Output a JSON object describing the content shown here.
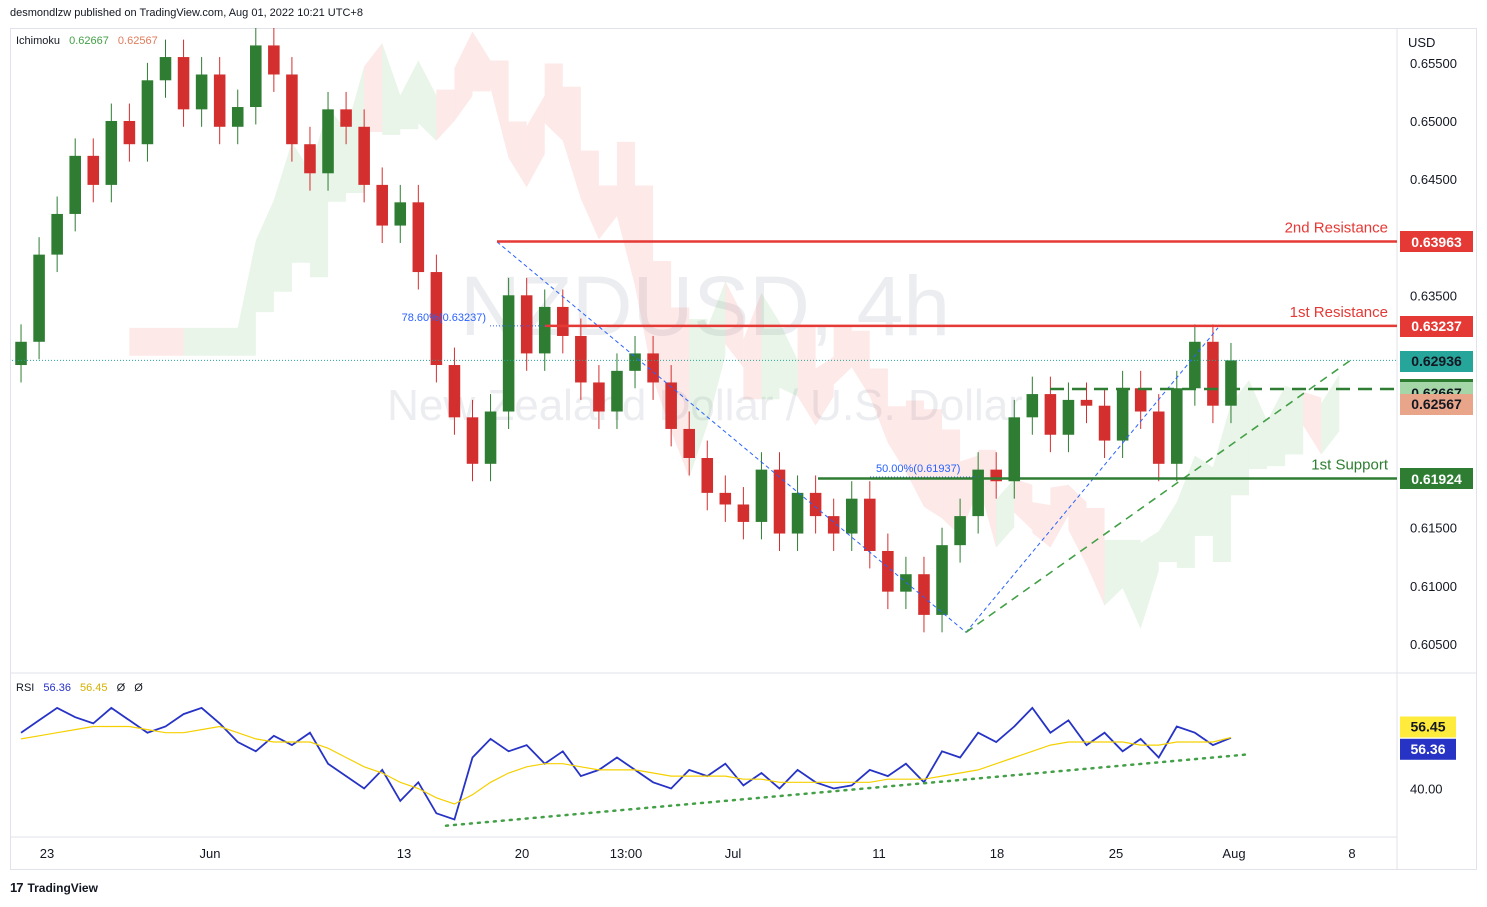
{
  "header": {
    "published": "desmondlzw published on TradingView.com, Aug 01, 2022 10:21 UTC+8"
  },
  "watermark": {
    "symbol": "NZDUSD, 4h",
    "name": "New Zealand Dollar / U.S. Dollar"
  },
  "indicators": {
    "ichimoku": {
      "label": "Ichimoku",
      "v1": "0.62667",
      "v2": "0.62567"
    },
    "rsi": {
      "label": "RSI",
      "v1": "56.36",
      "v2": "56.45",
      "v3": "Ø",
      "v4": "Ø"
    }
  },
  "footer": {
    "brand": "TradingView"
  },
  "colors": {
    "up": "#26a69a",
    "down": "#ef5350",
    "candle_up": "#2e7d32",
    "candle_down": "#d32f2f",
    "resistance": "#e53935",
    "support": "#2e7d32",
    "fib": "#2962ff",
    "rsi": "#2633c5",
    "rsi_ma": "#f5d000"
  },
  "chart_data": [
    {
      "type": "candlestick",
      "title": "NZDUSD, 4h",
      "ylabel": "USD",
      "ylim": [
        0.6025,
        0.658
      ],
      "yticks": [
        "0.65500",
        "0.65000",
        "0.64500",
        "0.63500",
        "0.61500",
        "0.61000",
        "0.60500"
      ],
      "xticks": [
        "23",
        "Jun",
        "13",
        "20",
        "13:00",
        "Jul",
        "11",
        "18",
        "25",
        "Aug",
        "8"
      ],
      "annotations": {
        "levels": [
          {
            "label": "2nd Resistance",
            "value": 0.63963,
            "tag": "0.63963",
            "color": "#e53935",
            "style": "solid"
          },
          {
            "label": "1st Resistance",
            "value": 0.63237,
            "tag": "0.63237",
            "color": "#e53935",
            "style": "solid"
          },
          {
            "label": "",
            "value": 0.62694,
            "tag": "0.62694",
            "color": "#2e7d32",
            "style": "dashed"
          },
          {
            "label": "1st Support",
            "value": 0.61924,
            "tag": "0.61924",
            "color": "#2e7d32",
            "style": "solid"
          }
        ],
        "fib": [
          {
            "text": "78.60%(0.63237)",
            "value": 0.63237
          },
          {
            "text": "50.00%(0.61937)",
            "value": 0.61937
          }
        ],
        "tags": [
          {
            "text": "0.62936",
            "value": 0.62936,
            "color": "#26a69a"
          },
          {
            "text": "0.62667",
            "value": 0.62667,
            "color": "#a5d6a7"
          },
          {
            "text": "0.62567",
            "value": 0.62567,
            "color": "#e8a58a"
          }
        ]
      },
      "series": [
        {
          "name": "Close",
          "values": [
            0.631,
            0.6385,
            0.642,
            0.647,
            0.6445,
            0.65,
            0.648,
            0.6535,
            0.6555,
            0.651,
            0.654,
            0.6495,
            0.6512,
            0.6565,
            0.654,
            0.648,
            0.6455,
            0.651,
            0.6495,
            0.6445,
            0.641,
            0.643,
            0.637,
            0.629,
            0.6245,
            0.6205,
            0.625,
            0.635,
            0.63,
            0.634,
            0.6315,
            0.6275,
            0.625,
            0.6285,
            0.63,
            0.6275,
            0.6235,
            0.621,
            0.618,
            0.617,
            0.6155,
            0.62,
            0.6145,
            0.618,
            0.616,
            0.6145,
            0.6175,
            0.613,
            0.6095,
            0.611,
            0.6075,
            0.6135,
            0.616,
            0.62,
            0.619,
            0.6245,
            0.6265,
            0.623,
            0.626,
            0.6255,
            0.6225,
            0.627,
            0.625,
            0.6205,
            0.627,
            0.631,
            0.6255,
            0.6294
          ]
        }
      ]
    },
    {
      "type": "line",
      "title": "RSI",
      "ylim": [
        25,
        75
      ],
      "yticks": [
        "40.00"
      ],
      "series": [
        {
          "name": "RSI",
          "tag": "56.36",
          "values": [
            58,
            62,
            66,
            63,
            61,
            66,
            62,
            58,
            60,
            64,
            66,
            61,
            55,
            52,
            57,
            54,
            58,
            48,
            44,
            40,
            46,
            36,
            42,
            32,
            30,
            50,
            56,
            52,
            54,
            48,
            52,
            44,
            46,
            50,
            46,
            42,
            40,
            46,
            44,
            48,
            41,
            45,
            40,
            46,
            42,
            40,
            41,
            46,
            44,
            48,
            42,
            52,
            50,
            58,
            55,
            60,
            66,
            58,
            62,
            54,
            58,
            52,
            56,
            50,
            60,
            58,
            54,
            56.36
          ]
        },
        {
          "name": "MA",
          "tag": "56.45",
          "values": [
            56,
            57,
            58,
            59,
            60,
            60,
            60,
            59,
            58,
            58,
            59,
            60,
            58,
            56,
            55,
            55,
            55,
            53,
            50,
            47,
            45,
            42,
            40,
            37,
            35,
            38,
            42,
            45,
            47,
            48,
            48,
            47,
            46,
            46,
            46,
            45,
            44,
            44,
            44,
            44,
            43,
            43,
            42,
            42,
            42,
            42,
            42,
            42,
            43,
            43,
            43,
            44,
            45,
            46,
            48,
            50,
            52,
            54,
            55,
            55,
            55,
            55,
            54,
            54,
            55,
            55,
            55,
            56.45
          ]
        }
      ]
    }
  ]
}
